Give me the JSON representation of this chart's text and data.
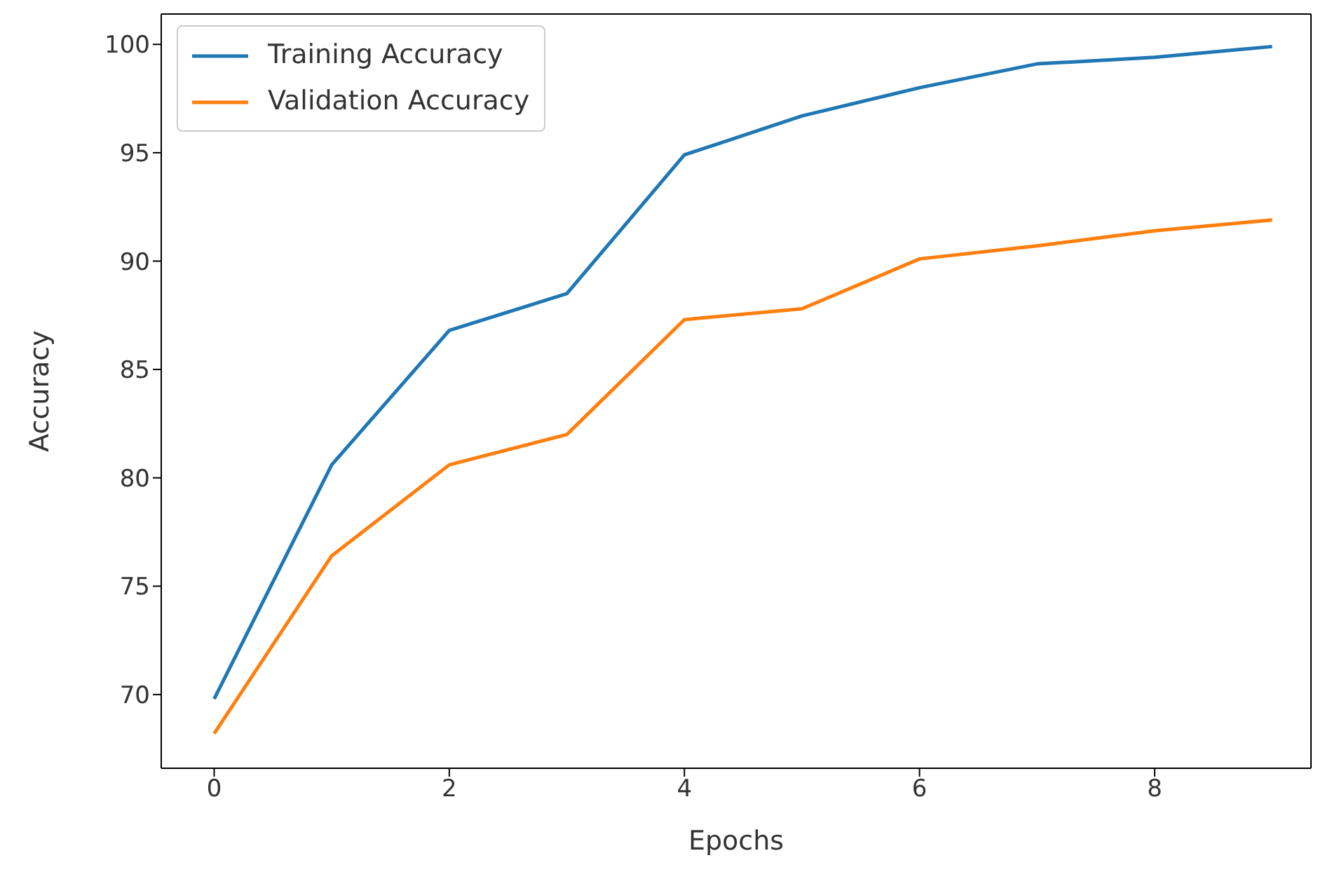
{
  "chart_data": {
    "type": "line",
    "xlabel": "Epochs",
    "ylabel": "Accuracy",
    "x": [
      0,
      1,
      2,
      3,
      4,
      5,
      6,
      7,
      8,
      9
    ],
    "series": [
      {
        "name": "Training Accuracy",
        "color": "#1f77b4",
        "values": [
          69.8,
          80.6,
          86.8,
          88.5,
          94.9,
          96.7,
          98.0,
          99.1,
          99.4,
          99.9
        ]
      },
      {
        "name": "Validation Accuracy",
        "color": "#ff7f0e",
        "values": [
          68.2,
          76.4,
          80.6,
          82.0,
          87.3,
          87.8,
          90.1,
          90.7,
          91.4,
          91.9
        ]
      }
    ],
    "xlim": [
      -0.45,
      9.33
    ],
    "xticks": [
      0,
      2,
      4,
      6,
      8
    ],
    "ylim": [
      66.6,
      101.4
    ],
    "yticks": [
      70,
      75,
      80,
      85,
      90,
      95,
      100
    ],
    "grid": false,
    "legend": "top left",
    "marker": "none",
    "line_style": "solid"
  }
}
